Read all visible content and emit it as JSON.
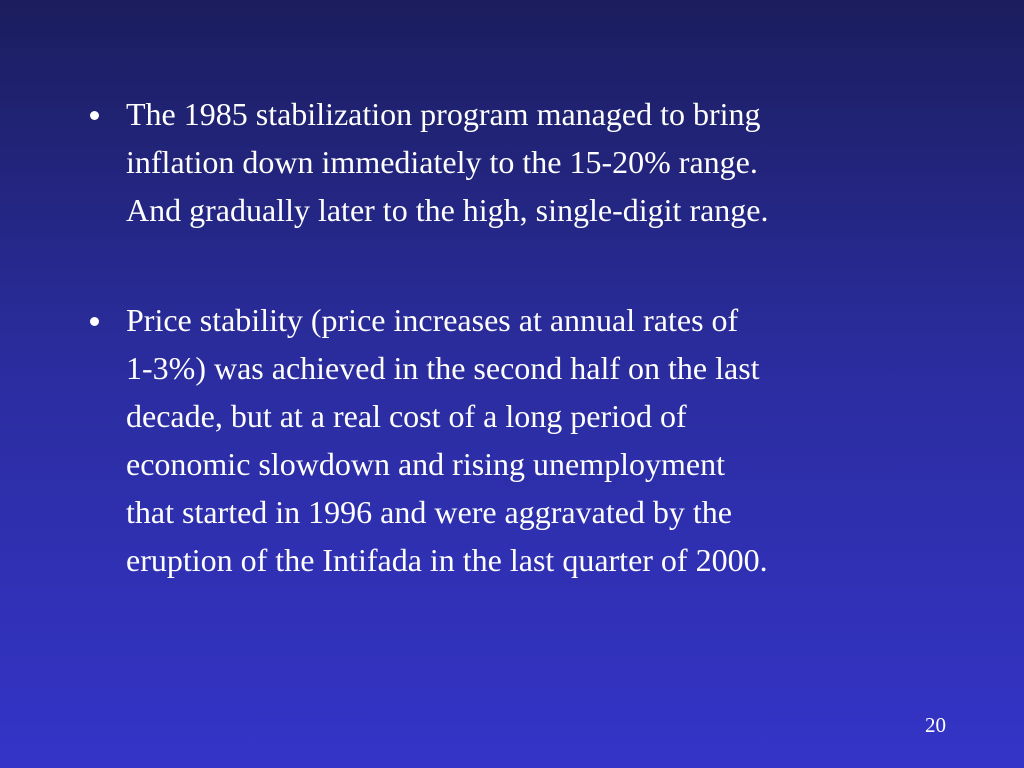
{
  "bullets": [
    {
      "lines": [
        "The 1985 stabilization program managed to bring",
        "inflation down immediately to the 15-20% range.",
        "And gradually later to the high, single-digit range."
      ]
    },
    {
      "lines": [
        "Price stability (price increases at annual rates of",
        "1-3%) was achieved in the second half on the last",
        "decade, but at a real cost of a long period of",
        "economic slowdown and rising unemployment",
        "that started in 1996 and were aggravated by the",
        "eruption of the Intifada in the last quarter of 2000."
      ]
    }
  ],
  "page_number": "20"
}
